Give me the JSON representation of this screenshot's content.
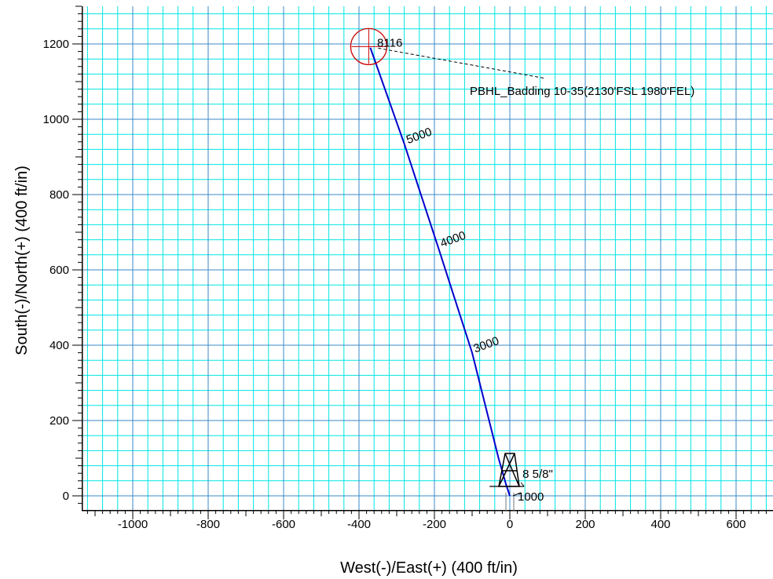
{
  "chart_data": {
    "type": "line",
    "title": "",
    "xlabel": "West(-)/East(+) (400 ft/in)",
    "ylabel": "South(-)/North(+) (400 ft/in)",
    "xlim": [
      -1140,
      700
    ],
    "ylim": [
      -40,
      1300
    ],
    "grid": true,
    "x_ticks": [
      -1000,
      -800,
      -600,
      -400,
      -200,
      0,
      200,
      400,
      600
    ],
    "x_tick_labels": [
      "-1000",
      "-800",
      "-600",
      "-400",
      "-200",
      "0",
      "200",
      "400",
      "600"
    ],
    "y_ticks": [
      0,
      200,
      400,
      600,
      800,
      1000,
      1200
    ],
    "y_tick_labels": [
      "0",
      "200",
      "400",
      "600",
      "800",
      "1000",
      "1200"
    ],
    "series": [
      {
        "color": "#0000cc",
        "x": [
          0,
          -10,
          -30,
          -100,
          -190,
          -280,
          -370
        ],
        "y": [
          0,
          30,
          100,
          380,
          660,
          935,
          1190
        ]
      }
    ],
    "depth_labels": [
      {
        "text": "3000",
        "x": -92,
        "y": 380
      },
      {
        "text": "4000",
        "x": -180,
        "y": 660
      },
      {
        "text": "5000",
        "x": -270,
        "y": 935
      },
      {
        "text": "8116",
        "x": -352,
        "y": 1193
      }
    ],
    "target": {
      "x": -370,
      "y": 1193,
      "label": "PBHL_Badding 10-35(2130'FSL 1980'FEL)",
      "circle_color": "#cc0000"
    },
    "casing_label": "8 5/8\"",
    "casing_point": {
      "x": -8,
      "y": 25
    },
    "start_label": "1000",
    "start_point": {
      "x": 0,
      "y": 0
    }
  }
}
